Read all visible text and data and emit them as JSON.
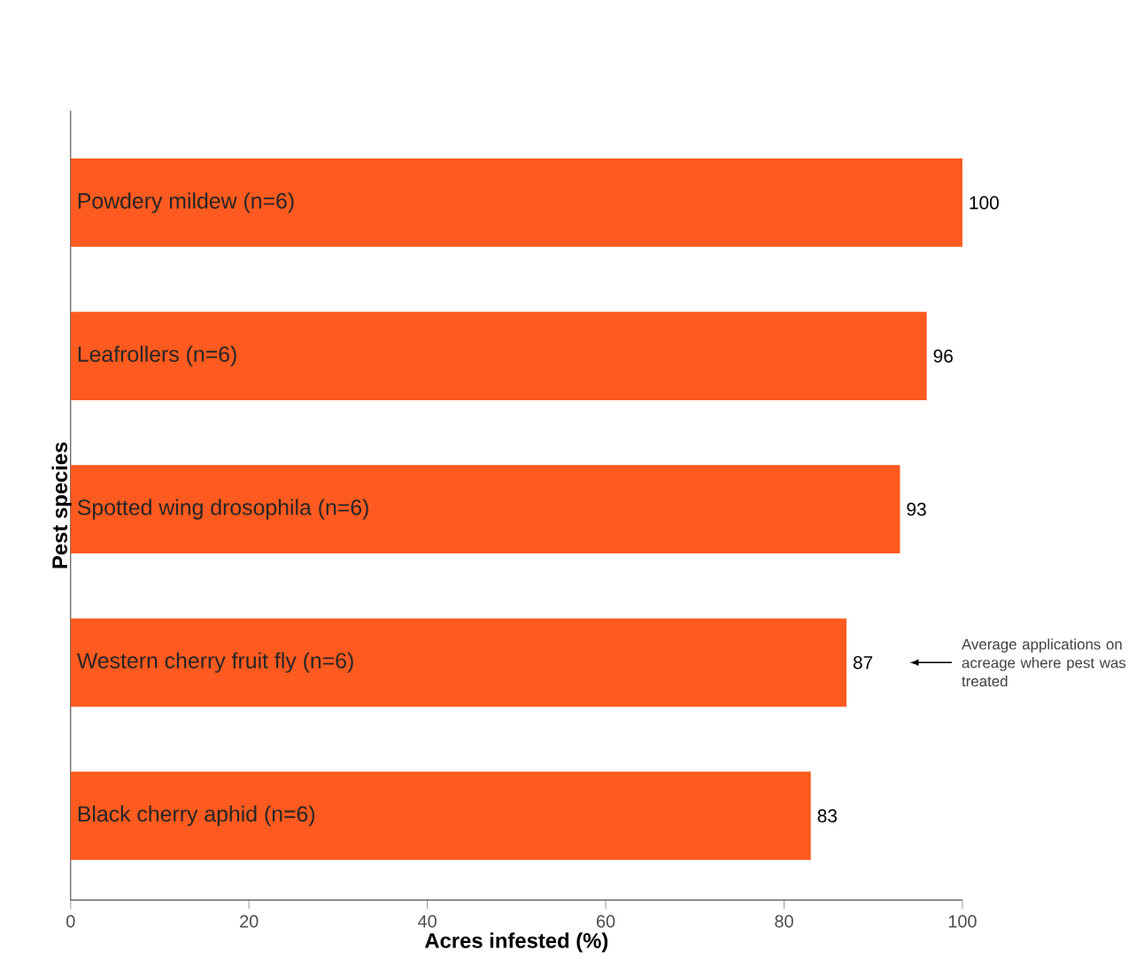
{
  "chart_data": {
    "type": "bar",
    "orientation": "horizontal",
    "categories": [
      "Powdery mildew (n=6)",
      "Leafrollers (n=6)",
      "Spotted wing drosophila (n=6)",
      "Western cherry fruit fly (n=6)",
      "Black cherry aphid (n=6)"
    ],
    "values": [
      100,
      96,
      93,
      87,
      83
    ],
    "color": "#ff5a1f",
    "xlim": [
      0,
      100
    ],
    "xticks": [
      0,
      20,
      40,
      60,
      80,
      100
    ],
    "xlabel": "Acres infested (%)",
    "ylabel": "Pest species",
    "data_labels": true,
    "annotations": [
      "Average applications on acreage where pest was treated"
    ]
  }
}
